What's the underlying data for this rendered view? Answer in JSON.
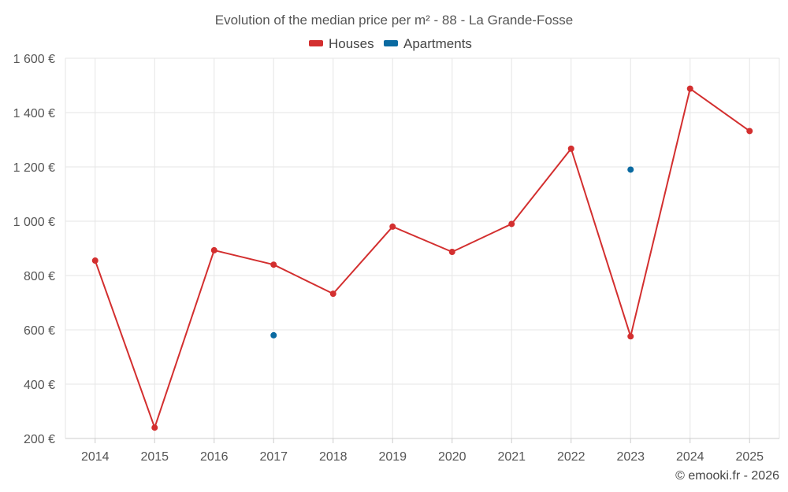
{
  "chart_data": {
    "type": "line",
    "title": "Evolution of the median price per m² - 88 - La Grande-Fosse",
    "x": [
      "2014",
      "2015",
      "2016",
      "2017",
      "2018",
      "2019",
      "2020",
      "2021",
      "2022",
      "2023",
      "2024",
      "2025"
    ],
    "ylim": [
      200,
      1600
    ],
    "yticks": [
      200,
      400,
      600,
      800,
      1000,
      1200,
      1400,
      1600
    ],
    "ytick_labels": [
      "200 €",
      "400 €",
      "600 €",
      "800 €",
      "1 000 €",
      "1 200 €",
      "1 400 €",
      "1 600 €"
    ],
    "grid": true,
    "legend_position": "top-center",
    "series": [
      {
        "name": "Houses",
        "color": "#d32f2f",
        "line": true,
        "values": [
          855,
          240,
          893,
          840,
          733,
          980,
          887,
          990,
          1267,
          576,
          1488,
          1332
        ]
      },
      {
        "name": "Apartments",
        "color": "#0a6aa1",
        "line": false,
        "values": [
          null,
          null,
          null,
          580,
          null,
          null,
          null,
          null,
          null,
          1190,
          null,
          null
        ]
      }
    ]
  },
  "credit": "© emooki.fr - 2026"
}
